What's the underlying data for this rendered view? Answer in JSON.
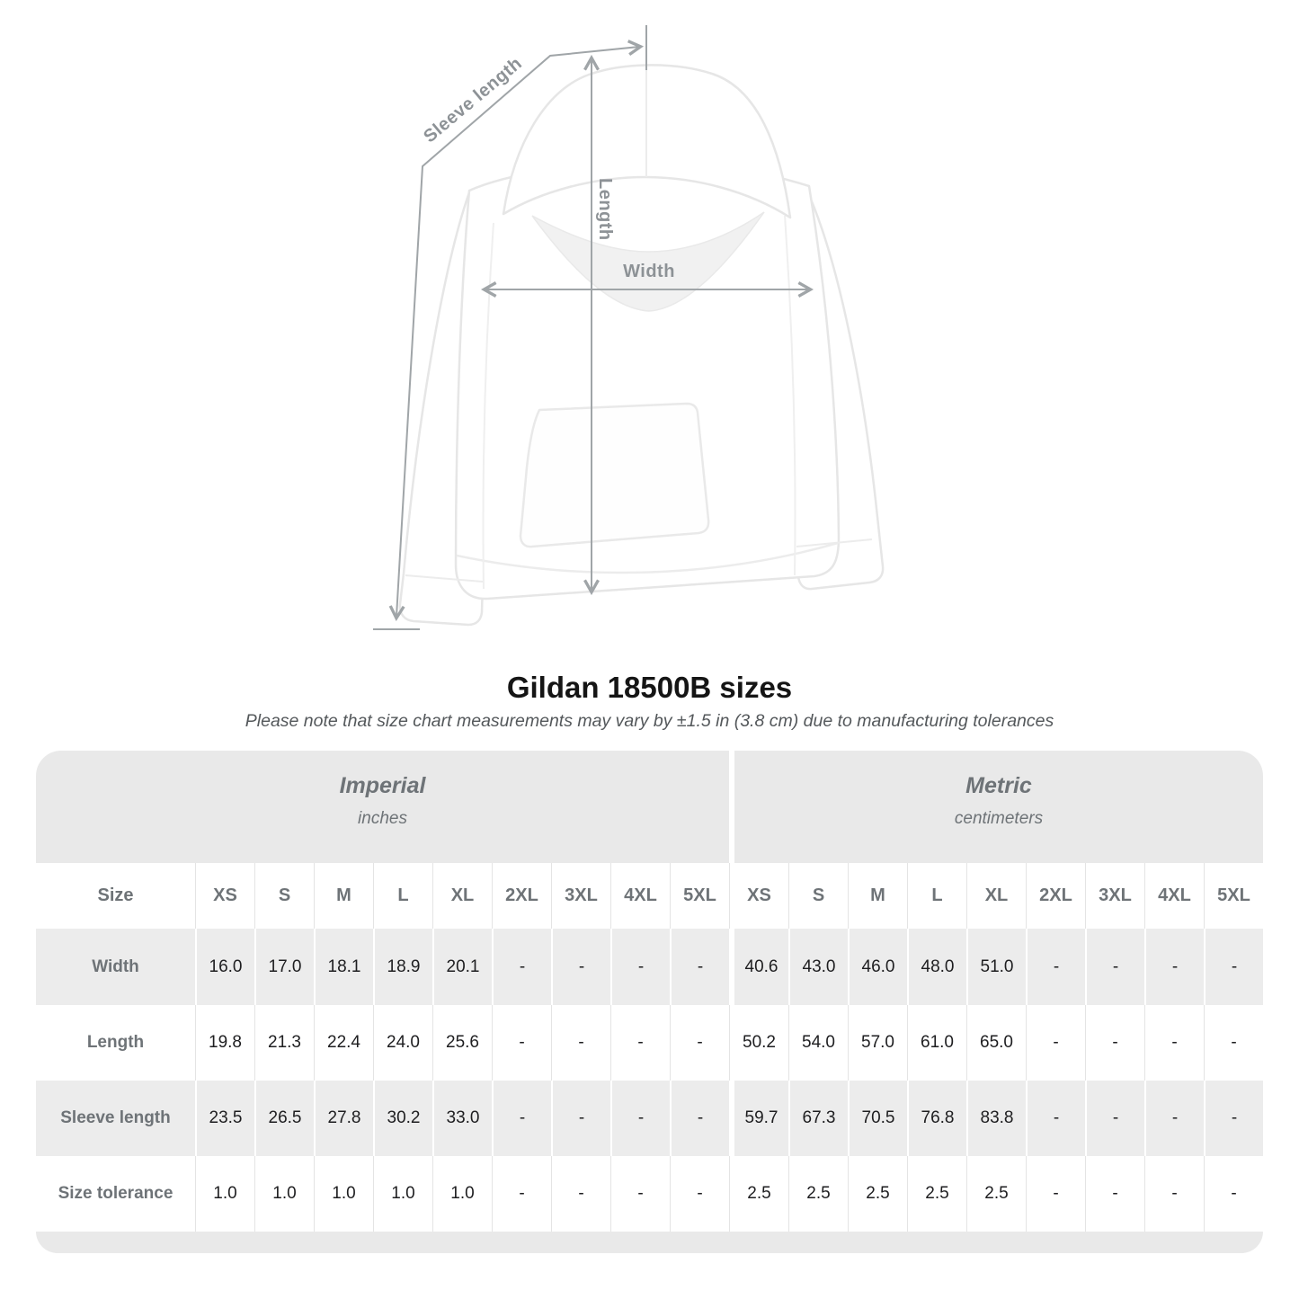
{
  "heading": {
    "title": "Gildan 18500B sizes",
    "subtitle": "Please note that size chart measurements may vary by ±1.5 in (3.8 cm) due to manufacturing tolerances"
  },
  "figure": {
    "sleeve_length_label": "Sleeve length",
    "length_label": "Length",
    "width_label": "Width"
  },
  "colors": {
    "band_background": "#e9e9e9",
    "alt_row_background": "#ececec",
    "header_text": "#6e7377",
    "value_text": "#1e1e20",
    "cell_separator": "#e4e4e4",
    "annotation_line": "#a0a5a8",
    "annotation_text": "#8d9296"
  },
  "chart_data": {
    "type": "table",
    "title": "Gildan 18500B sizes",
    "corner_label": "Size",
    "unit_groups": [
      {
        "label": "Imperial",
        "unit": "inches"
      },
      {
        "label": "Metric",
        "unit": "centimeters"
      }
    ],
    "size_columns": [
      "XS",
      "S",
      "M",
      "L",
      "XL",
      "2XL",
      "3XL",
      "4XL",
      "5XL"
    ],
    "rows": [
      {
        "label": "Width",
        "imperial": [
          "16.0",
          "17.0",
          "18.1",
          "18.9",
          "20.1",
          "-",
          "-",
          "-",
          "-"
        ],
        "metric": [
          "40.6",
          "43.0",
          "46.0",
          "48.0",
          "51.0",
          "-",
          "-",
          "-",
          "-"
        ]
      },
      {
        "label": "Length",
        "imperial": [
          "19.8",
          "21.3",
          "22.4",
          "24.0",
          "25.6",
          "-",
          "-",
          "-",
          "-"
        ],
        "metric": [
          "50.2",
          "54.0",
          "57.0",
          "61.0",
          "65.0",
          "-",
          "-",
          "-",
          "-"
        ]
      },
      {
        "label": "Sleeve length",
        "imperial": [
          "23.5",
          "26.5",
          "27.8",
          "30.2",
          "33.0",
          "-",
          "-",
          "-",
          "-"
        ],
        "metric": [
          "59.7",
          "67.3",
          "70.5",
          "76.8",
          "83.8",
          "-",
          "-",
          "-",
          "-"
        ]
      },
      {
        "label": "Size tolerance",
        "imperial": [
          "1.0",
          "1.0",
          "1.0",
          "1.0",
          "1.0",
          "-",
          "-",
          "-",
          "-"
        ],
        "metric": [
          "2.5",
          "2.5",
          "2.5",
          "2.5",
          "2.5",
          "-",
          "-",
          "-",
          "-"
        ]
      }
    ]
  }
}
